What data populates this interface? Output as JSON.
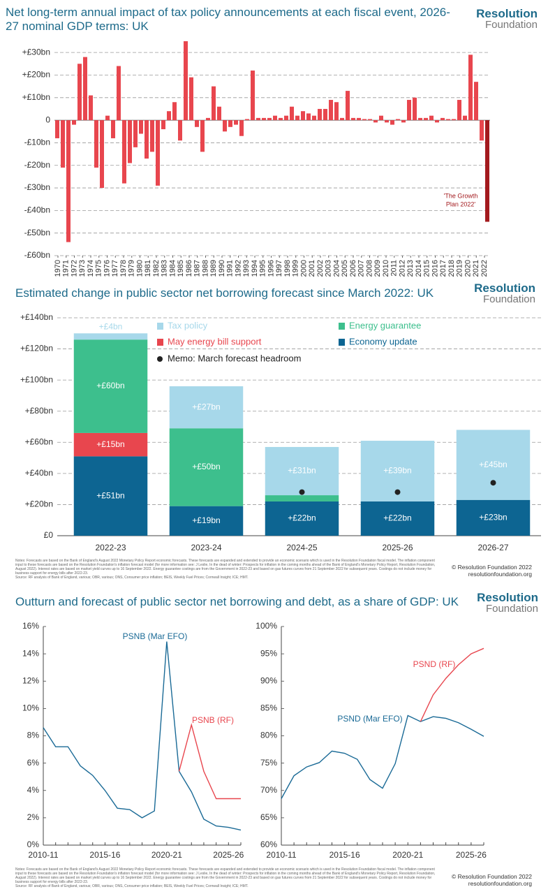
{
  "brand": {
    "name": "Resolution",
    "sub": "Foundation"
  },
  "notes": "Notes: Forecasts are based on the Bank of England's August 2022 Monetary Policy Report economic forecasts. These forecasts are expanded and extended to provide an economic scenario which is used in the Resolution Foundation fiscal model. The inflation component input to these forecasts are based on the Resolution Foundation's inflation forecast model (for more information see: J Leslie, In the dead of winter: Prospects for inflation in the coming months ahead of the Bank of England's Monetary Policy Report, Resolution Foundation, August 2022). Interest rates are based on market yield curves up to 16 September 2022. Energy guarantee costings are from the Government in 2022-23 and based on gas futures curves from 21 September 2022 for subsequent years. Costings do not include money for business support for energy bills after 2022-23.",
  "source": "Source: RF analysis of Bank of England, various; OBR, various; ONS, Consumer price inflation; BEIS, Weekly Fuel Prices; Cornwall Insight; ICE; HMT.",
  "copyright": "© Resolution Foundation 2022",
  "website": "resolutionfoundation.org",
  "chart_data": [
    {
      "type": "bar",
      "title": "Net long-term annual impact of tax policy announcements at each fiscal event, 2026-27 nominal GDP terms: UK",
      "values": [
        -8,
        -21,
        -54,
        -2,
        25,
        28,
        11,
        -21,
        -30,
        2,
        -8,
        24,
        -28,
        -19,
        -12,
        -6,
        -17,
        -14,
        -29,
        -4,
        4,
        8,
        -9,
        35,
        19,
        -3,
        -14,
        1,
        15,
        6,
        -5,
        -3,
        -2,
        -7,
        0.5,
        22,
        1,
        1,
        1,
        2,
        1,
        2,
        6,
        2,
        4,
        3,
        2,
        5,
        5,
        9,
        8,
        1,
        13,
        1,
        1,
        0.5,
        0.5,
        -1,
        2,
        -1,
        -2,
        0.5,
        -1,
        9,
        10,
        1,
        1,
        2,
        -1,
        1,
        0.5,
        0.5,
        9,
        2,
        29,
        17,
        -9,
        -45
      ],
      "color": "#e8464e",
      "annotation": {
        "lines": [
          "'The Growth",
          "Plan 2022'"
        ],
        "bar": 77,
        "color": "#a31a1e"
      },
      "ylim": [
        -60,
        35
      ],
      "yticks": [
        {
          "value": -60,
          "label": "-£60bn"
        },
        {
          "value": -50,
          "label": "-£50bn"
        },
        {
          "value": -40,
          "label": "-£40bn"
        },
        {
          "value": -30,
          "label": "-£30bn"
        },
        {
          "value": -20,
          "label": "-£20bn"
        },
        {
          "value": -10,
          "label": "-£10bn"
        },
        0,
        {
          "value": 10,
          "label": "+£10bn"
        },
        {
          "value": 20,
          "label": "+£20bn"
        },
        {
          "value": 30,
          "label": "+£30bn"
        }
      ],
      "xlim": [
        1970,
        2022
      ],
      "xticks": [
        1970,
        1971,
        1972,
        1973,
        1974,
        1975,
        1976,
        1977,
        1978,
        1979,
        1980,
        1981,
        1982,
        1983,
        1984,
        1985,
        1986,
        1987,
        1988,
        1989,
        1990,
        1991,
        1992,
        1993,
        1994,
        1995,
        1996,
        1997,
        1998,
        1999,
        2000,
        2001,
        2002,
        2003,
        2004,
        2005,
        2006,
        2007,
        2008,
        2009,
        2010,
        2011,
        2012,
        2013,
        2014,
        2015,
        2016,
        2017,
        2018,
        2019,
        2020,
        2021,
        2022
      ],
      "grid": true
    },
    {
      "type": "stacked_bar",
      "title": "Estimated change in public sector net borrowing forecast since March 2022: UK",
      "categories": [
        "2022-23",
        "2023-24",
        "2024-25",
        "2025-26",
        "2026-27"
      ],
      "series": [
        {
          "name": "Economy update",
          "color": "#0d6592",
          "values": [
            51,
            19,
            22,
            22,
            23
          ],
          "value_labels": [
            "+£51bn",
            "+£19bn",
            "+£22bn",
            "+£22bn",
            "+£23bn"
          ]
        },
        {
          "name": "May energy bill support",
          "color": "#e8464e",
          "values": [
            15,
            null,
            null,
            null,
            null
          ],
          "value_labels": [
            "+£15bn",
            null,
            null,
            null,
            null
          ]
        },
        {
          "name": "Energy guarantee",
          "color": "#3dbf8d",
          "values": [
            60,
            50,
            4,
            null,
            null
          ],
          "value_labels": [
            "+£60bn",
            "+£50bn",
            null,
            null,
            null
          ]
        },
        {
          "name": "Tax policy",
          "color": "#a7d8ea",
          "values": [
            4,
            27,
            31,
            39,
            45
          ],
          "value_labels": [
            "+£4bn",
            "+£27bn",
            "+£31bn",
            "+£39bn",
            "+£45bn"
          ]
        },
        {
          "name": "Memo: March forecast headroom",
          "color": "#222222",
          "marker": "dot",
          "values": [
            null,
            null,
            28,
            28,
            34
          ]
        }
      ],
      "ylim": [
        0,
        140
      ],
      "yticks": [
        {
          "value": 0,
          "label": "£0"
        },
        {
          "value": 20,
          "label": "+£20bn"
        },
        {
          "value": 40,
          "label": "+£40bn"
        },
        {
          "value": 60,
          "label": "+£60bn"
        },
        {
          "value": 80,
          "label": "+£80bn"
        },
        {
          "value": 100,
          "label": "+£100bn"
        },
        {
          "value": 120,
          "label": "+£120bn"
        },
        {
          "value": 140,
          "label": "+£140bn"
        }
      ],
      "grid": true
    },
    {
      "type": "line",
      "title": "Outturn and forecast of public sector net borrowing and debt, as a share of GDP: UK",
      "categories": [
        "2010-11",
        null,
        null,
        null,
        null,
        "2015-16",
        null,
        null,
        null,
        null,
        "2020-21",
        null,
        null,
        null,
        null,
        "2025-26",
        null
      ],
      "series": [
        {
          "name": "PSNB (Mar EFO)",
          "color": "#1a6a96",
          "values": [
            8.6,
            7.2,
            7.2,
            5.8,
            5.1,
            4.0,
            2.7,
            2.6,
            2.0,
            2.5,
            14.9,
            5.4,
            3.9,
            1.9,
            1.4,
            1.3,
            1.1
          ]
        },
        {
          "name": "PSNB (RF)",
          "color": "#e8464e",
          "values": [
            null,
            null,
            null,
            null,
            null,
            null,
            null,
            null,
            null,
            null,
            null,
            5.4,
            8.8,
            5.4,
            3.4,
            3.4,
            3.4
          ]
        }
      ],
      "ylim": [
        0,
        16
      ],
      "yticks": [
        {
          "value": 0,
          "label": "0%"
        },
        {
          "value": 2,
          "label": "2%"
        },
        {
          "value": 4,
          "label": "4%"
        },
        {
          "value": 6,
          "label": "6%"
        },
        {
          "value": 8,
          "label": "8%"
        },
        {
          "value": 10,
          "label": "10%"
        },
        {
          "value": 12,
          "label": "12%"
        },
        {
          "value": 14,
          "label": "14%"
        },
        {
          "value": 16,
          "label": "16%"
        }
      ]
    },
    {
      "type": "line",
      "categories": [
        "2010-11",
        null,
        null,
        null,
        null,
        "2015-16",
        null,
        null,
        null,
        null,
        "2020-21",
        null,
        null,
        null,
        null,
        "2025-26",
        null
      ],
      "series": [
        {
          "name": "PSND (Mar EFO)",
          "color": "#1a6a96",
          "values": [
            68.5,
            72.7,
            74.3,
            75.1,
            77.2,
            76.8,
            75.7,
            72.0,
            70.4,
            74.9,
            83.7,
            82.6,
            83.5,
            83.2,
            82.4,
            81.2,
            79.9
          ]
        },
        {
          "name": "PSND (RF)",
          "color": "#e8464e",
          "values": [
            null,
            null,
            null,
            null,
            null,
            null,
            null,
            null,
            null,
            null,
            null,
            82.6,
            87.5,
            90.5,
            93.0,
            95.0,
            96.0
          ]
        }
      ],
      "ylim": [
        60,
        100
      ],
      "yticks": [
        {
          "value": 60,
          "label": "60%"
        },
        {
          "value": 65,
          "label": "65%"
        },
        {
          "value": 70,
          "label": "70%"
        },
        {
          "value": 75,
          "label": "75%"
        },
        {
          "value": 80,
          "label": "80%"
        },
        {
          "value": 85,
          "label": "85%"
        },
        {
          "value": 90,
          "label": "90%"
        },
        {
          "value": 95,
          "label": "95%"
        },
        {
          "value": 100,
          "label": "100%"
        }
      ]
    }
  ]
}
